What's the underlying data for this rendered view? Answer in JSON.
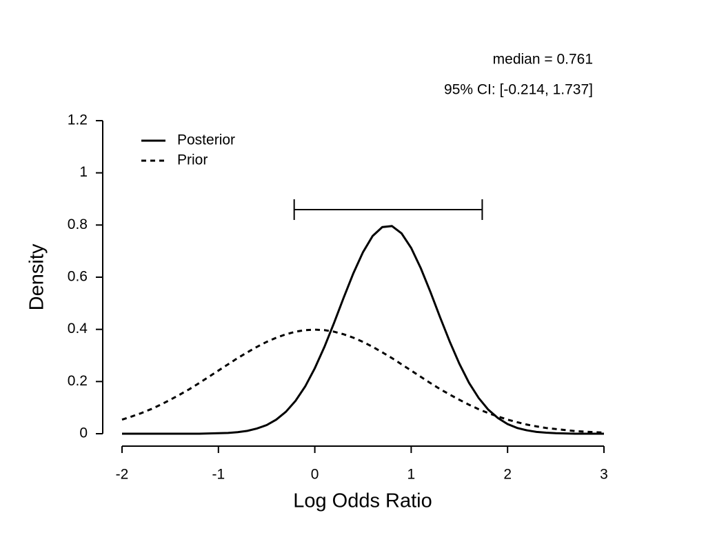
{
  "chart_data": {
    "type": "line",
    "xlabel": "Log Odds Ratio",
    "ylabel": "Density",
    "annotations": [
      "median = 0.761",
      "95% CI: [-0.214, 1.737]"
    ],
    "ci": [
      -0.214,
      1.737
    ],
    "x": [
      -2.0,
      -1.9,
      -1.8,
      -1.7,
      -1.6,
      -1.5,
      -1.4,
      -1.3,
      -1.2,
      -1.1,
      -1.0,
      -0.9,
      -0.8,
      -0.7,
      -0.6,
      -0.5,
      -0.4,
      -0.3,
      -0.2,
      -0.1,
      0.0,
      0.1,
      0.2,
      0.3,
      0.4,
      0.5,
      0.6,
      0.7,
      0.8,
      0.9,
      1.0,
      1.1,
      1.2,
      1.3,
      1.4,
      1.5,
      1.6,
      1.7,
      1.8,
      1.9,
      2.0,
      2.1,
      2.2,
      2.3,
      2.4,
      2.5,
      2.6,
      2.7,
      2.8,
      2.9,
      3.0
    ],
    "series": [
      {
        "name": "Posterior",
        "color": "#000000",
        "dash": "solid",
        "values": [
          0,
          0,
          0,
          0,
          0,
          0,
          0,
          0,
          0,
          0.001,
          0.002,
          0.003,
          0.006,
          0.011,
          0.02,
          0.033,
          0.054,
          0.084,
          0.126,
          0.181,
          0.251,
          0.333,
          0.425,
          0.522,
          0.615,
          0.696,
          0.758,
          0.792,
          0.796,
          0.768,
          0.712,
          0.634,
          0.543,
          0.446,
          0.353,
          0.268,
          0.195,
          0.137,
          0.092,
          0.06,
          0.037,
          0.022,
          0.013,
          0.007,
          0.004,
          0.002,
          0.001,
          0,
          0,
          0,
          0
        ]
      },
      {
        "name": "Prior",
        "color": "#000000",
        "dash": "dashed",
        "values": [
          0.054,
          0.066,
          0.079,
          0.094,
          0.111,
          0.13,
          0.15,
          0.171,
          0.194,
          0.218,
          0.242,
          0.266,
          0.29,
          0.312,
          0.333,
          0.352,
          0.368,
          0.381,
          0.391,
          0.397,
          0.399,
          0.397,
          0.391,
          0.381,
          0.368,
          0.352,
          0.333,
          0.312,
          0.29,
          0.266,
          0.242,
          0.218,
          0.194,
          0.171,
          0.15,
          0.13,
          0.111,
          0.094,
          0.079,
          0.066,
          0.054,
          0.044,
          0.035,
          0.028,
          0.022,
          0.018,
          0.014,
          0.01,
          0.008,
          0.006,
          0.004
        ]
      }
    ],
    "xlim": [
      -2,
      3
    ],
    "xticks": [
      -2,
      -1,
      0,
      1,
      2,
      3
    ],
    "ylim": [
      0,
      1.2
    ],
    "yticks": [
      0,
      0.2,
      0.4,
      0.6,
      0.8,
      1,
      1.2
    ],
    "grid": false,
    "legend": "top-left"
  }
}
